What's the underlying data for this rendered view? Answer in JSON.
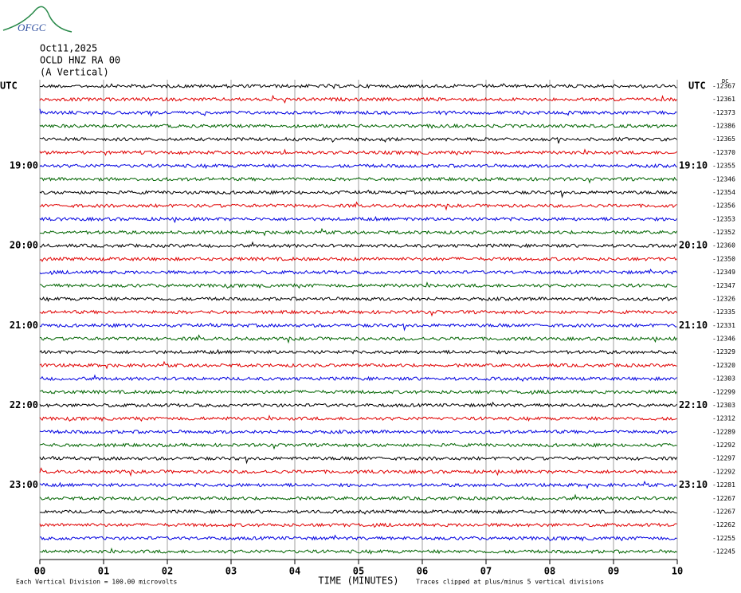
{
  "header": {
    "logo": "OFGC",
    "date": "Oct11,2025",
    "station": "OCLD HNZ RA 00",
    "component": "(A Vertical)"
  },
  "left_labels": [
    "UTC",
    "19:00",
    "20:00",
    "21:00",
    "22:00",
    "23:00"
  ],
  "right_labels": [
    "UTC",
    "19:10",
    "20:10",
    "21:10",
    "22:10",
    "23:10"
  ],
  "dc_label": "DC",
  "offsets": [
    -12367,
    -12361,
    -12373,
    -12386,
    -12365,
    -12370,
    -12355,
    -12346,
    -12354,
    -12356,
    -12353,
    -12352,
    -12360,
    -12350,
    -12349,
    -12347,
    -12326,
    -12335,
    -12331,
    -12346,
    -12329,
    -12320,
    -12303,
    -12299,
    -12303,
    -12312,
    -12289,
    -12292,
    -12297,
    -12292,
    -12281,
    -12267,
    -12267,
    -12262,
    -12255,
    -12245
  ],
  "x_axis": {
    "ticks": [
      "00",
      "01",
      "02",
      "03",
      "04",
      "05",
      "06",
      "07",
      "08",
      "09",
      "10"
    ],
    "title": "TIME (MINUTES)"
  },
  "footer": {
    "left": "Each Vertical Division =  100.00 microvolts",
    "right": "Traces clipped at plus/minus 5 vertical divisions"
  }
}
